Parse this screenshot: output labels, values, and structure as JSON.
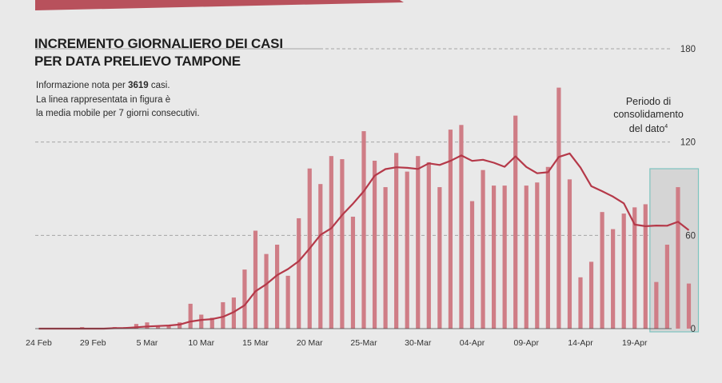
{
  "title_line1": "INCREMENTO GIORNALIERO DEI CASI",
  "title_line2": "PER DATA PRELIEVO TAMPONE",
  "info": {
    "line1_prefix": "Informazione nota per ",
    "line1_count": "3619",
    "line1_suffix": " casi.",
    "line2": "La linea rappresentata in figura è",
    "line3": "la media mobile per 7 giorni consecutivi."
  },
  "consolidation": {
    "line1": "Periodo di",
    "line2": "consolidamento",
    "line3": "del dato",
    "footnote": "4"
  },
  "colors": {
    "bar": "#cf7d86",
    "line": "#b53949",
    "grid": "#a5a5a5",
    "highlight_fill": "#d5d5d5",
    "highlight_border": "#7dc4bf",
    "banner": "#b8515c"
  },
  "chart_data": {
    "type": "bar",
    "x_tick_labels": [
      "24 Feb",
      "29 Feb",
      "5 Mar",
      "10 Mar",
      "15 Mar",
      "20 Mar",
      "25-Mar",
      "30-Mar",
      "04-Apr",
      "09-Apr",
      "14-Apr",
      "19-Apr"
    ],
    "y_ticks": [
      0,
      60,
      120,
      180
    ],
    "ylim": [
      0,
      180
    ],
    "start_date": "24 Feb",
    "values": [
      0,
      0,
      0,
      0,
      1,
      0,
      0,
      1,
      1,
      3,
      4,
      2,
      2,
      4,
      16,
      9,
      7,
      17,
      20,
      38,
      63,
      48,
      54,
      34,
      71,
      103,
      93,
      111,
      109,
      72,
      127,
      108,
      91,
      113,
      101,
      111,
      107,
      91,
      128,
      131,
      82,
      102,
      92,
      92,
      137,
      92,
      94,
      104,
      155,
      96,
      33,
      43,
      75,
      64,
      74,
      78,
      80,
      30,
      54,
      91,
      29
    ],
    "moving_average": [
      0,
      0,
      0,
      0,
      0,
      0,
      0,
      0.3,
      0.4,
      0.9,
      1.4,
      1.7,
      2,
      2.6,
      4.6,
      5.6,
      6.1,
      7.6,
      10.7,
      15,
      24,
      28.6,
      34.4,
      38.3,
      43.4,
      51.6,
      60.3,
      64.6,
      73.1,
      80.4,
      88.4,
      98.4,
      102.6,
      103.8,
      103.4,
      102.7,
      106.3,
      105.3,
      107.9,
      111.4,
      107.9,
      108.6,
      106.7,
      104.1,
      110.8,
      104,
      99.9,
      100.6,
      110.4,
      112.7,
      103.6,
      91.6,
      88.4,
      84.9,
      80.6,
      66.9,
      65.9,
      66.3,
      66.2,
      68.7,
      63.3
    ],
    "consolidation_period_days": 4,
    "grid": "horizontal dashed"
  }
}
